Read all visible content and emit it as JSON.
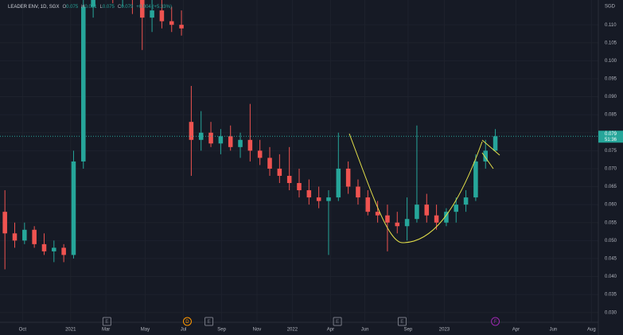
{
  "chart_data": {
    "type": "candlestick",
    "header": {
      "symbol": "LEADER ENV, 1D, SGX",
      "ohlc": [
        {
          "key": "O",
          "value": "0.075"
        },
        {
          "key": "H",
          "value": "0.081"
        },
        {
          "key": "L",
          "value": "0.075"
        },
        {
          "key": "C",
          "value": "0.079"
        }
      ],
      "change": "+0.004 (+5.33%)"
    },
    "currency": "SGD",
    "open": [
      0.058,
      0.052,
      0.05,
      0.053,
      0.049,
      0.047,
      0.048,
      0.046,
      0.072,
      0.115,
      0.125,
      0.122,
      0.12,
      0.124,
      0.117,
      0.112,
      0.114,
      0.111,
      0.11,
      0.083,
      0.078,
      0.08,
      0.077,
      0.079,
      0.076,
      0.078,
      0.075,
      0.073,
      0.07,
      0.068,
      0.066,
      0.064,
      0.062,
      0.061,
      0.062,
      0.07,
      0.065,
      0.062,
      0.058,
      0.057,
      0.055,
      0.054,
      0.056,
      0.06,
      0.057,
      0.055,
      0.058,
      0.06,
      0.062,
      0.072,
      0.075
    ],
    "high": [
      0.064,
      0.055,
      0.055,
      0.054,
      0.052,
      0.05,
      0.049,
      0.075,
      0.12,
      0.13,
      0.135,
      0.13,
      0.128,
      0.127,
      0.12,
      0.118,
      0.117,
      0.115,
      0.114,
      0.093,
      0.086,
      0.083,
      0.081,
      0.082,
      0.08,
      0.088,
      0.078,
      0.076,
      0.074,
      0.076,
      0.07,
      0.067,
      0.065,
      0.064,
      0.08,
      0.072,
      0.067,
      0.064,
      0.061,
      0.06,
      0.058,
      0.062,
      0.082,
      0.063,
      0.06,
      0.059,
      0.062,
      0.064,
      0.074,
      0.078,
      0.081
    ],
    "low": [
      0.042,
      0.048,
      0.049,
      0.048,
      0.046,
      0.044,
      0.044,
      0.045,
      0.07,
      0.112,
      0.118,
      0.116,
      0.115,
      0.113,
      0.103,
      0.108,
      0.109,
      0.108,
      0.107,
      0.068,
      0.075,
      0.076,
      0.074,
      0.075,
      0.073,
      0.072,
      0.071,
      0.068,
      0.066,
      0.064,
      0.062,
      0.06,
      0.059,
      0.046,
      0.061,
      0.063,
      0.06,
      0.057,
      0.055,
      0.047,
      0.052,
      0.05,
      0.055,
      0.055,
      0.053,
      0.054,
      0.055,
      0.058,
      0.061,
      0.07,
      0.075
    ],
    "close": [
      0.052,
      0.05,
      0.053,
      0.049,
      0.047,
      0.048,
      0.046,
      0.072,
      0.115,
      0.125,
      0.122,
      0.12,
      0.124,
      0.117,
      0.112,
      0.114,
      0.111,
      0.11,
      0.109,
      0.078,
      0.08,
      0.077,
      0.079,
      0.076,
      0.078,
      0.075,
      0.073,
      0.07,
      0.068,
      0.066,
      0.064,
      0.062,
      0.061,
      0.062,
      0.07,
      0.065,
      0.062,
      0.058,
      0.057,
      0.055,
      0.054,
      0.056,
      0.06,
      0.057,
      0.055,
      0.058,
      0.06,
      0.062,
      0.072,
      0.075,
      0.079
    ],
    "up_color": "#26a69a",
    "down_color": "#ef5350",
    "xlim": [
      -0.5,
      60.5
    ],
    "xticks": [
      {
        "value": 1.8,
        "label": "Oct"
      },
      {
        "value": 6.7,
        "label": "2021"
      },
      {
        "value": 10.3,
        "label": "Mar"
      },
      {
        "value": 14.3,
        "label": "May"
      },
      {
        "value": 18.2,
        "label": "Jul"
      },
      {
        "value": 22.1,
        "label": "Sep"
      },
      {
        "value": 25.7,
        "label": "Nov"
      },
      {
        "value": 29.3,
        "label": "2022"
      },
      {
        "value": 33.2,
        "label": "Apr"
      },
      {
        "value": 36.7,
        "label": "Jun"
      },
      {
        "value": 41.1,
        "label": "Sep"
      },
      {
        "value": 44.8,
        "label": "2023"
      },
      {
        "value": 52.1,
        "label": "Apr"
      },
      {
        "value": 55.9,
        "label": "Jun"
      },
      {
        "value": 59.8,
        "label": "Aug"
      }
    ],
    "ylim": [
      0.0275,
      0.1169
    ],
    "yticks": [
      {
        "value": 0.03,
        "label": "0.030"
      },
      {
        "value": 0.035,
        "label": "0.035"
      },
      {
        "value": 0.04,
        "label": "0.040"
      },
      {
        "value": 0.045,
        "label": "0.045"
      },
      {
        "value": 0.05,
        "label": "0.050"
      },
      {
        "value": 0.055,
        "label": "0.055"
      },
      {
        "value": 0.06,
        "label": "0.060"
      },
      {
        "value": 0.065,
        "label": "0.065"
      },
      {
        "value": 0.07,
        "label": "0.070"
      },
      {
        "value": 0.075,
        "label": "0.075"
      },
      {
        "value": 0.08,
        "label": "0.080"
      },
      {
        "value": 0.085,
        "label": "0.085"
      },
      {
        "value": 0.09,
        "label": "0.090"
      },
      {
        "value": 0.095,
        "label": "0.095"
      },
      {
        "value": 0.1,
        "label": "0.100"
      },
      {
        "value": 0.105,
        "label": "0.105"
      },
      {
        "value": 0.11,
        "label": "0.110"
      }
    ],
    "grid": true,
    "last_price": {
      "value": 0.079,
      "label": "0.079",
      "countdown": "51:36"
    },
    "events": [
      {
        "x": 10.4,
        "label": "E",
        "color": "#787b86"
      },
      {
        "x": 18.6,
        "label": "D",
        "color": "#ff9800"
      },
      {
        "x": 20.8,
        "label": "E",
        "color": "#787b86"
      },
      {
        "x": 33.9,
        "label": "E",
        "color": "#787b86"
      },
      {
        "x": 40.5,
        "label": "E",
        "color": "#787b86"
      },
      {
        "x": 50,
        "label": "F",
        "color": "#9c27b0"
      }
    ]
  }
}
